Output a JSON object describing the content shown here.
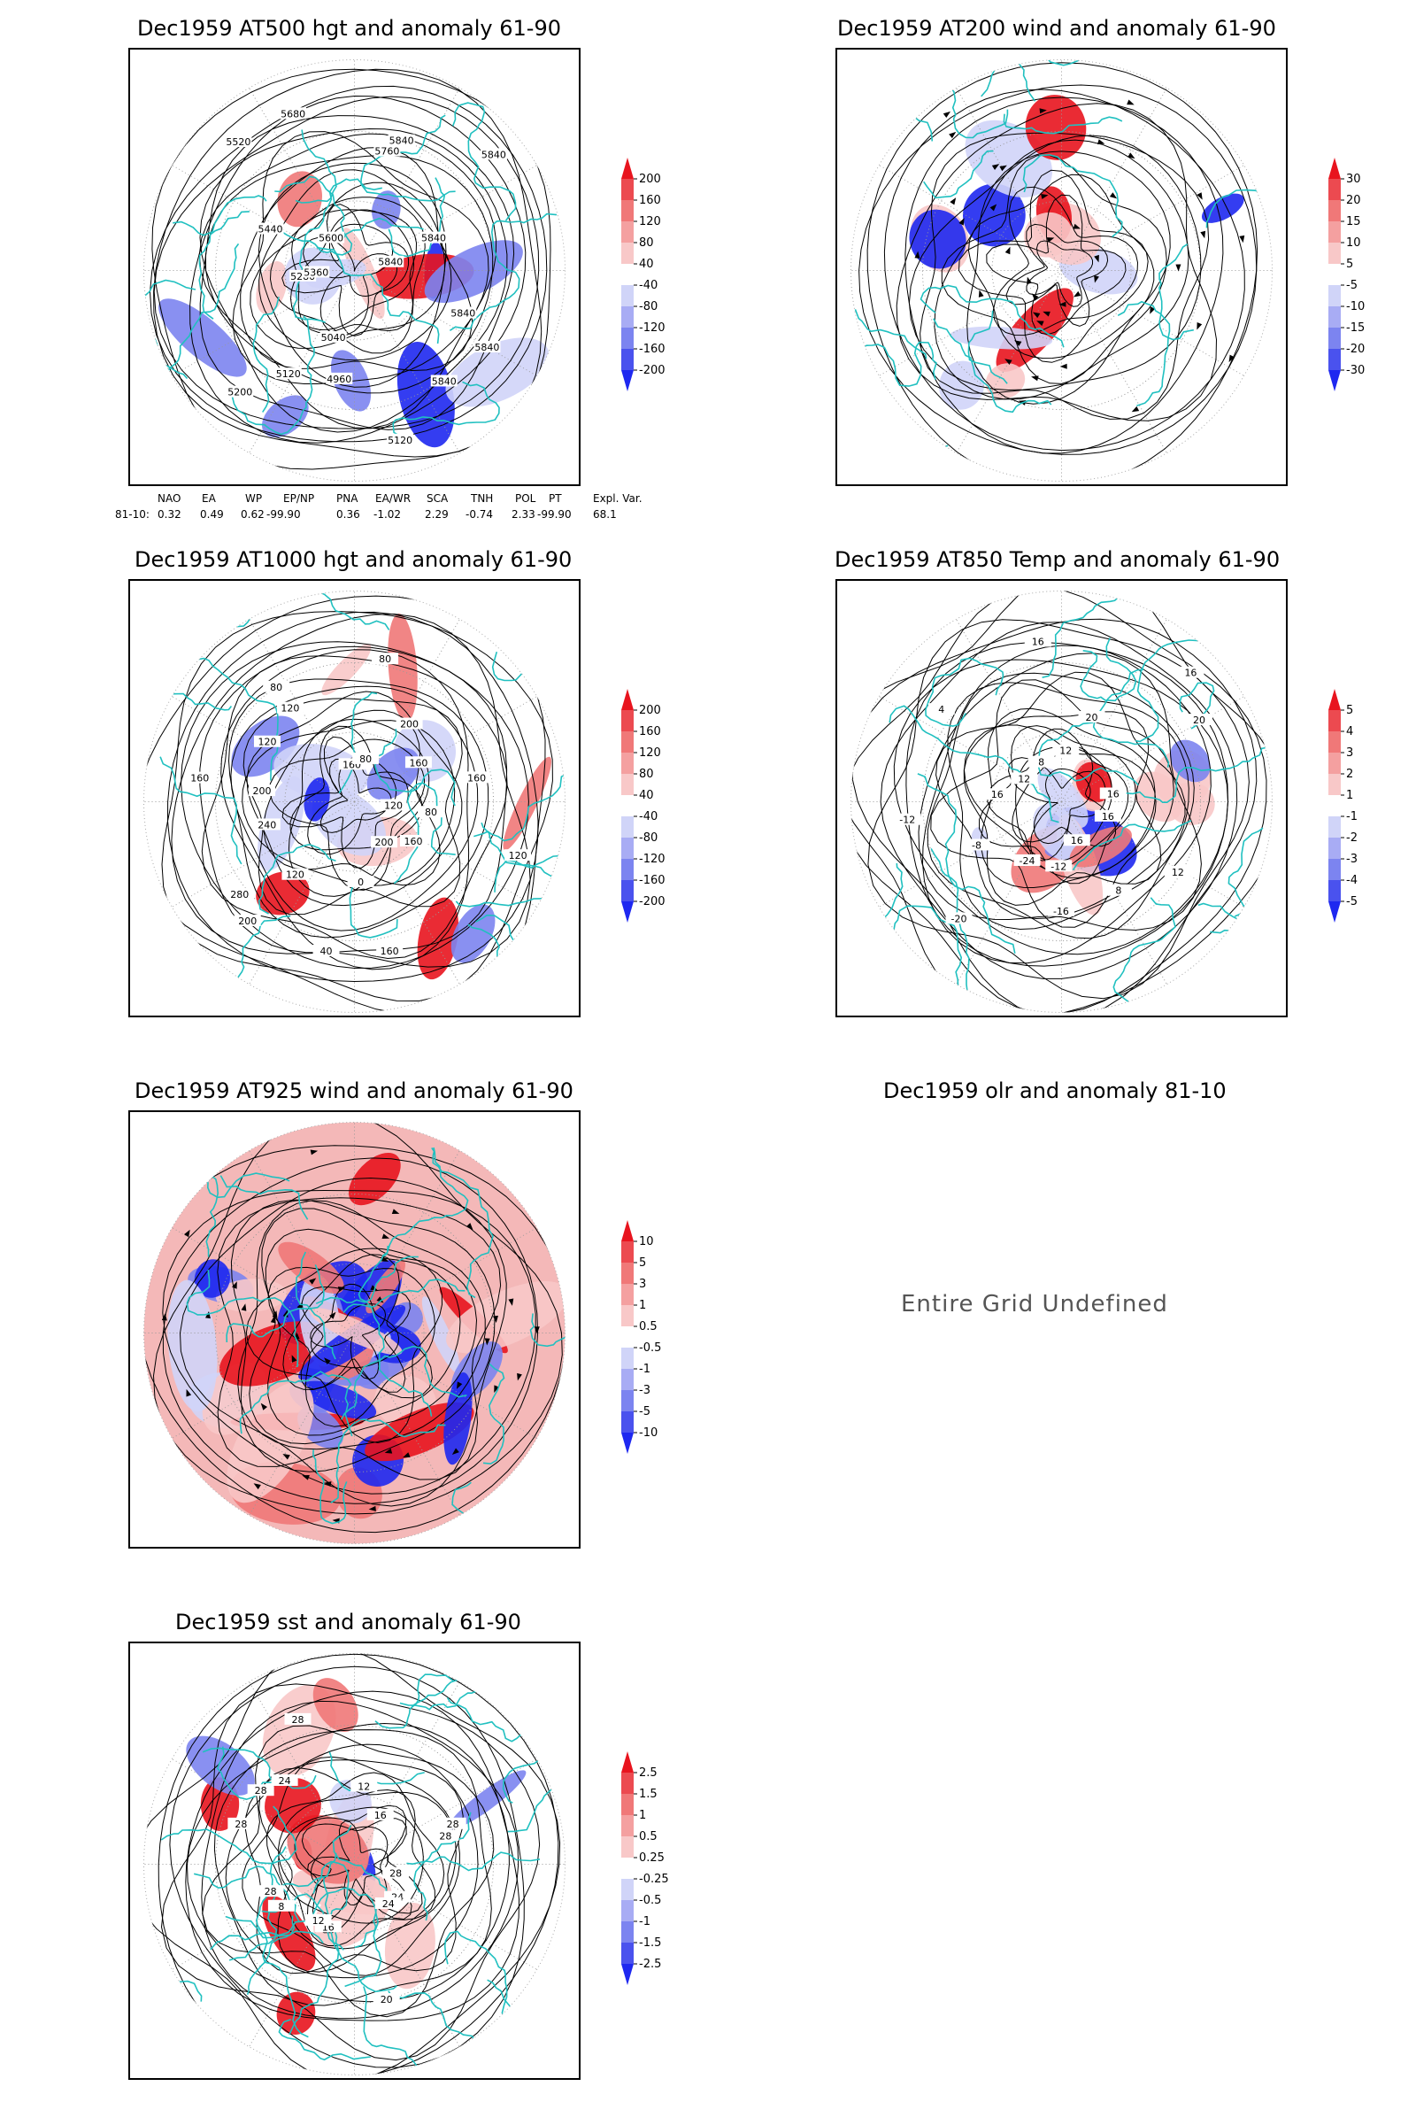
{
  "panels": [
    {
      "id": "at500",
      "title": "Dec1959 AT500 hgt and anomaly 61-90",
      "colorbar": [
        "200",
        "160",
        "120",
        "80",
        "40",
        "-40",
        "-80",
        "-120",
        "-160",
        "-200"
      ],
      "contour_labels": [
        "5840",
        "5840",
        "5840",
        "5120",
        "4960",
        "5040",
        "5120",
        "5200",
        "5280",
        "5360",
        "5440",
        "5520",
        "5600",
        "5680",
        "5760",
        "5840",
        "5840",
        "5840",
        "5840"
      ]
    },
    {
      "id": "at200",
      "title": "Dec1959 AT200 wind and anomaly 61-90",
      "colorbar": [
        "30",
        "20",
        "15",
        "10",
        "5",
        "-5",
        "-10",
        "-15",
        "-20",
        "-30"
      ]
    },
    {
      "id": "at1000",
      "title": "Dec1959 AT1000 hgt and anomaly 61-90",
      "colorbar": [
        "200",
        "160",
        "120",
        "80",
        "40",
        "-40",
        "-80",
        "-120",
        "-160",
        "-200"
      ],
      "contour_labels": [
        "80",
        "120",
        "160",
        "200",
        "160",
        "0",
        "40",
        "120",
        "200",
        "280",
        "240",
        "200",
        "160",
        "120",
        "80",
        "120",
        "160",
        "80",
        "80",
        "200",
        "160",
        "160",
        "120"
      ]
    },
    {
      "id": "at850",
      "title": "Dec1959 AT850 Temp and anomaly 61-90",
      "colorbar": [
        "5",
        "4",
        "3",
        "2",
        "1",
        "-1",
        "-2",
        "-3",
        "-4",
        "-5"
      ],
      "contour_labels": [
        "16",
        "12",
        "8",
        "16",
        "-12",
        "-16",
        "-24",
        "-20",
        "-8",
        "-12",
        "16",
        "12",
        "4",
        "8",
        "16",
        "12",
        "20",
        "16",
        "20",
        "16"
      ]
    },
    {
      "id": "at925",
      "title": "Dec1959 AT925 wind and anomaly 61-90",
      "colorbar": [
        "10",
        "5",
        "3",
        "1",
        "0.5",
        "-0.5",
        "-1",
        "-3",
        "-5",
        "-10"
      ]
    },
    {
      "id": "olr",
      "title": "Dec1959 olr and anomaly 81-10",
      "message": "Entire Grid Undefined"
    },
    {
      "id": "sst",
      "title": "Dec1959 sst and anomaly 61-90",
      "colorbar": [
        "2.5",
        "1.5",
        "1",
        "0.5",
        "0.25",
        "-0.25",
        "-0.5",
        "-1",
        "-1.5",
        "-2.5"
      ],
      "contour_labels": [
        "28",
        "24",
        "24",
        "20",
        "16",
        "12",
        "8",
        "28",
        "28",
        "28",
        "24",
        "28",
        "12",
        "16",
        "28",
        "28"
      ]
    }
  ],
  "teleconnections": {
    "headers": [
      "NAO",
      "EA",
      "WP",
      "EP/NP",
      "PNA",
      "EA/WR",
      "SCA",
      "TNH",
      "POL",
      "PT",
      "Expl. Var."
    ],
    "row_label": "81-10:",
    "values": [
      "0.32",
      "0.49",
      "0.62",
      "-99.90",
      "0.36",
      "-1.02",
      "2.29",
      "-0.74",
      "2.33",
      "-99.90",
      "68.1"
    ]
  },
  "colors": {
    "coast": "#20c0c0",
    "warm_strong": "#e8141e",
    "warm": "#f07878",
    "warm_light": "#f8c8c8",
    "cool_light": "#d0d4f8",
    "cool": "#7c84f0",
    "cool_strong": "#1e28f0",
    "contour": "#000000"
  }
}
